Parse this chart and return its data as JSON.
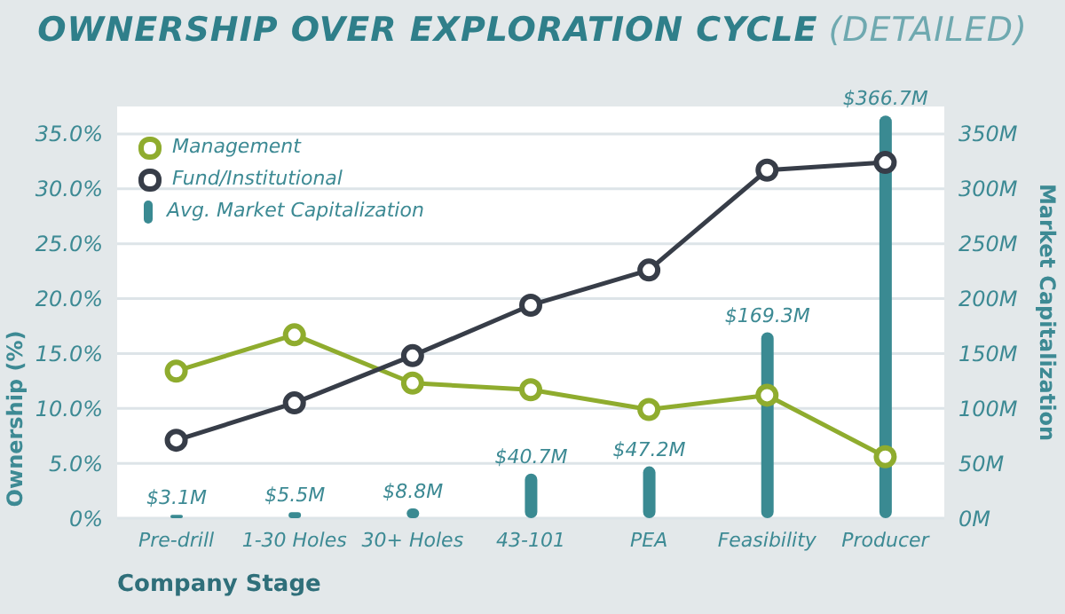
{
  "chart_data": {
    "type": "line",
    "title": "OWNERSHIP OVER EXPLORATION CYCLE",
    "subtitle": "(DETAILED)",
    "xlabel": "Company Stage",
    "ylabel": "Ownership (%)",
    "y2label": "Market Capitalization",
    "categories": [
      "Pre-drill",
      "1-30 Holes",
      "30+ Holes",
      "43-101",
      "PEA",
      "Feasibility",
      "Producer"
    ],
    "ylim": [
      0,
      37.5
    ],
    "yticks": [
      {
        "value": 0,
        "label": "0%"
      },
      {
        "value": 5,
        "label": "5.0%"
      },
      {
        "value": 10,
        "label": "10.0%"
      },
      {
        "value": 15,
        "label": "15.0%"
      },
      {
        "value": 20,
        "label": "20.0%"
      },
      {
        "value": 25,
        "label": "25.0%"
      },
      {
        "value": 30,
        "label": "30.0%"
      },
      {
        "value": 35,
        "label": "35.0%"
      }
    ],
    "y2lim": [
      0,
      375
    ],
    "y2ticks": [
      {
        "value": 0,
        "label": "0M"
      },
      {
        "value": 50,
        "label": "50M"
      },
      {
        "value": 100,
        "label": "100M"
      },
      {
        "value": 150,
        "label": "150M"
      },
      {
        "value": 200,
        "label": "200M"
      },
      {
        "value": 250,
        "label": "250M"
      },
      {
        "value": 300,
        "label": "300M"
      },
      {
        "value": 350,
        "label": "350M"
      }
    ],
    "grid": "y",
    "legend": "top left",
    "marker": "circle",
    "line_style": "solid",
    "series": [
      {
        "name": "Management",
        "color": "#8fac2e",
        "values": [
          13.4,
          16.7,
          12.3,
          11.7,
          9.9,
          11.2,
          5.6
        ]
      },
      {
        "name": "Fund/Institutional",
        "color": "#373d48",
        "values": [
          7.1,
          10.5,
          14.8,
          19.4,
          22.6,
          31.7,
          32.4
        ]
      },
      {
        "name": "Avg. Market Capitalization",
        "type": "bar",
        "axis": "y2",
        "color": "#3a8a92",
        "values": [
          3.1,
          5.5,
          8.8,
          40.7,
          47.2,
          169.3,
          366.7
        ],
        "value_labels": [
          "$3.1M",
          "$5.5M",
          "$8.8M",
          "$40.7M",
          "$47.2M",
          "$169.3M",
          "$366.7M"
        ]
      }
    ]
  }
}
